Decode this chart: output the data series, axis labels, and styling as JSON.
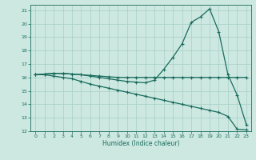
{
  "bg_color": "#cce8e0",
  "grid_color": "#a8cfc8",
  "line_color": "#1a6b5e",
  "xlabel": "Humidex (Indice chaleur)",
  "xlim": [
    -0.5,
    23.5
  ],
  "ylim": [
    12,
    21.4
  ],
  "xticks": [
    0,
    1,
    2,
    3,
    4,
    5,
    6,
    7,
    8,
    9,
    10,
    11,
    12,
    13,
    14,
    15,
    16,
    17,
    18,
    19,
    20,
    21,
    22,
    23
  ],
  "yticks": [
    12,
    13,
    14,
    15,
    16,
    17,
    18,
    19,
    20,
    21
  ],
  "line1_x": [
    0,
    1,
    2,
    3,
    4,
    5,
    6,
    7,
    8,
    9,
    10,
    11,
    12,
    13,
    14,
    15,
    16,
    17,
    18,
    19,
    20,
    21,
    22,
    23
  ],
  "line1_y": [
    16.2,
    16.25,
    16.3,
    16.3,
    16.25,
    16.2,
    16.15,
    16.1,
    16.05,
    16.0,
    16.0,
    16.0,
    16.0,
    16.0,
    16.0,
    16.0,
    16.0,
    16.0,
    16.0,
    16.0,
    16.0,
    16.0,
    16.0,
    16.0
  ],
  "line2_x": [
    0,
    1,
    2,
    3,
    4,
    5,
    6,
    7,
    8,
    9,
    10,
    11,
    12,
    13,
    14,
    15,
    16,
    17,
    18,
    19,
    20,
    21,
    22,
    23
  ],
  "line2_y": [
    16.2,
    16.25,
    16.3,
    16.3,
    16.25,
    16.2,
    16.1,
    16.0,
    15.9,
    15.8,
    15.7,
    15.65,
    15.6,
    15.8,
    16.6,
    17.5,
    18.5,
    20.1,
    20.5,
    21.1,
    19.4,
    16.2,
    14.7,
    12.5
  ],
  "line3_x": [
    0,
    1,
    2,
    3,
    4,
    5,
    6,
    7,
    8,
    9,
    10,
    11,
    12,
    13,
    14,
    15,
    16,
    17,
    18,
    19,
    20,
    21,
    22,
    23
  ],
  "line3_y": [
    16.2,
    16.2,
    16.1,
    16.0,
    15.9,
    15.7,
    15.5,
    15.35,
    15.2,
    15.05,
    14.9,
    14.75,
    14.6,
    14.45,
    14.3,
    14.15,
    14.0,
    13.85,
    13.7,
    13.55,
    13.4,
    13.1,
    12.15,
    12.1
  ]
}
